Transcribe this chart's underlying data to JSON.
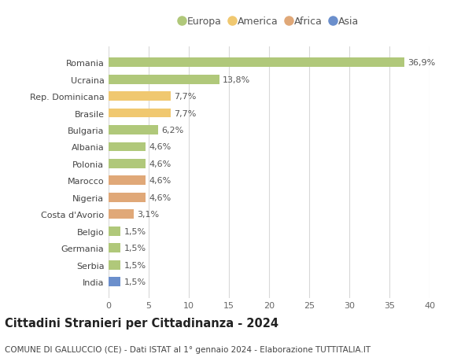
{
  "categories": [
    "India",
    "Serbia",
    "Germania",
    "Belgio",
    "Costa d'Avorio",
    "Nigeria",
    "Marocco",
    "Polonia",
    "Albania",
    "Bulgaria",
    "Brasile",
    "Rep. Dominicana",
    "Ucraina",
    "Romania"
  ],
  "values": [
    1.5,
    1.5,
    1.5,
    1.5,
    3.1,
    4.6,
    4.6,
    4.6,
    4.6,
    6.2,
    7.7,
    7.7,
    13.8,
    36.9
  ],
  "labels": [
    "1,5%",
    "1,5%",
    "1,5%",
    "1,5%",
    "3,1%",
    "4,6%",
    "4,6%",
    "4,6%",
    "4,6%",
    "6,2%",
    "7,7%",
    "7,7%",
    "13,8%",
    "36,9%"
  ],
  "colors": [
    "#6b8fcc",
    "#b0c87a",
    "#b0c87a",
    "#b0c87a",
    "#e0a878",
    "#e0a878",
    "#e0a878",
    "#b0c87a",
    "#b0c87a",
    "#b0c87a",
    "#f0c870",
    "#f0c870",
    "#b0c87a",
    "#b0c87a"
  ],
  "legend_labels": [
    "Europa",
    "America",
    "Africa",
    "Asia"
  ],
  "legend_colors": [
    "#b0c87a",
    "#f0c870",
    "#e0a878",
    "#6b8fcc"
  ],
  "title": "Cittadini Stranieri per Cittadinanza - 2024",
  "subtitle": "COMUNE DI GALLUCCIO (CE) - Dati ISTAT al 1° gennaio 2024 - Elaborazione TUTTITALIA.IT",
  "xlim": [
    0,
    40
  ],
  "xticks": [
    0,
    5,
    10,
    15,
    20,
    25,
    30,
    35,
    40
  ],
  "bg_color": "#ffffff",
  "grid_color": "#d8d8d8",
  "bar_height": 0.55,
  "label_fontsize": 8,
  "ytick_fontsize": 8,
  "xtick_fontsize": 8,
  "title_fontsize": 10.5,
  "subtitle_fontsize": 7.5
}
